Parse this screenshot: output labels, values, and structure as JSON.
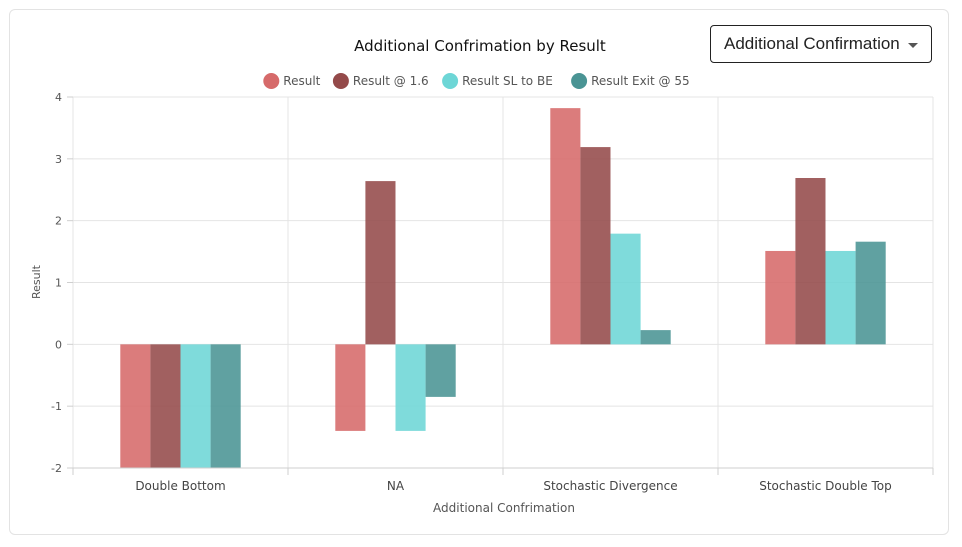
{
  "dropdown": {
    "selected": "Additional Confirmation"
  },
  "chart_data": {
    "type": "bar",
    "title": "Additional Confrimation by Result",
    "xlabel": "Additional Confrimation",
    "ylabel": "Result",
    "categories": [
      "Double Bottom",
      "NA",
      "Stochastic Divergence",
      "Stochastic Double Top"
    ],
    "ylim": [
      -2,
      4
    ],
    "yticks": [
      4,
      3,
      2,
      1,
      0,
      -1,
      -2
    ],
    "grid": true,
    "legend_position": "top",
    "series": [
      {
        "name": "Result",
        "color": "#d66a6a",
        "values": [
          -2,
          -1.4,
          3.82,
          1.51
        ]
      },
      {
        "name": "Result @ 1.6",
        "color": "#944a4a",
        "values": [
          -2,
          2.64,
          3.19,
          2.69
        ]
      },
      {
        "name": "Result SL to BE",
        "color": "#6dd6d6",
        "values": [
          -2,
          -1.4,
          1.79,
          1.51
        ]
      },
      {
        "name": "Result Exit @ 55",
        "color": "#4a9494",
        "values": [
          -2,
          -0.85,
          0.23,
          1.66
        ]
      }
    ]
  }
}
